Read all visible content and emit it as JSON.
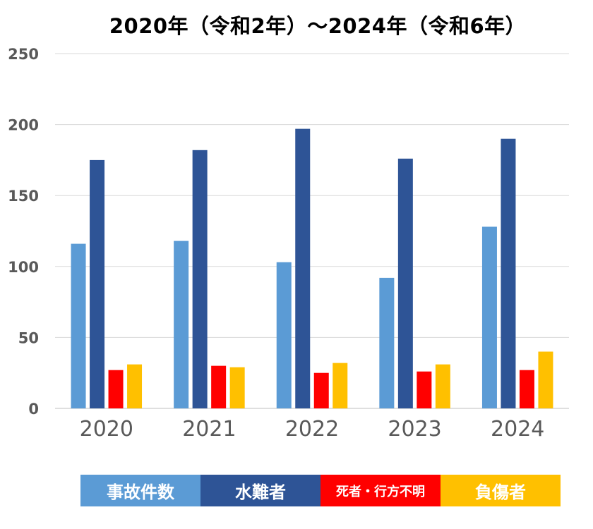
{
  "chart_data": {
    "type": "bar",
    "title": "2020年（令和2年）～2024年（令和6年）",
    "categories": [
      "2020",
      "2021",
      "2022",
      "2023",
      "2024"
    ],
    "series": [
      {
        "name": "事故件数",
        "color": "#5b9bd5",
        "values": [
          116,
          118,
          103,
          92,
          128
        ]
      },
      {
        "name": "水難者",
        "color": "#2e5496",
        "values": [
          175,
          182,
          197,
          176,
          190
        ]
      },
      {
        "name": "死者・行方不明",
        "color": "#ff0000",
        "values": [
          27,
          30,
          25,
          26,
          27
        ]
      },
      {
        "name": "負傷者",
        "color": "#ffc000",
        "values": [
          31,
          29,
          32,
          31,
          40
        ]
      }
    ],
    "ylim": [
      0,
      250
    ],
    "yticks": [
      "0",
      "50",
      "100",
      "150",
      "200",
      "250"
    ],
    "grid": true,
    "legend_placement": "bottom"
  }
}
